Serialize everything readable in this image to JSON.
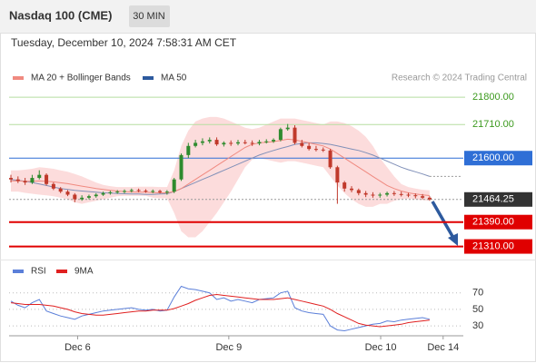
{
  "header": {
    "title": "Nasdaq 100 (CME)",
    "interval": "30 MIN",
    "timestamp": "Tuesday, December 10, 2024 7:58:31 AM CET",
    "watermark": "Research © 2024 Trading Central"
  },
  "chart_data": [
    {
      "type": "candlestick",
      "x": [
        0,
        1,
        2,
        3,
        4,
        5,
        6,
        7,
        8,
        9,
        10,
        11,
        12,
        13,
        14,
        15,
        16,
        17,
        18,
        19,
        20,
        21,
        22,
        23,
        24,
        25,
        26,
        27,
        28,
        29,
        30,
        31,
        32,
        33,
        34,
        35,
        36,
        37,
        38,
        39,
        40,
        41,
        42,
        43,
        44,
        45,
        46,
        47,
        48,
        49,
        50,
        51,
        52,
        53,
        54,
        55,
        56,
        57,
        58,
        59
      ],
      "xlim": [
        0,
        64
      ],
      "ylim": [
        21270,
        21836
      ],
      "up_color": "#2e8b2e",
      "down_color": "#c0392b",
      "open": [
        21535,
        21530,
        21525,
        21520,
        21535,
        21545,
        21515,
        21500,
        21490,
        21480,
        21465,
        21470,
        21475,
        21480,
        21485,
        21488,
        21490,
        21492,
        21495,
        21493,
        21490,
        21492,
        21488,
        21490,
        21530,
        21610,
        21640,
        21650,
        21655,
        21660,
        21645,
        21650,
        21648,
        21652,
        21650,
        21648,
        21653,
        21655,
        21660,
        21695,
        21700,
        21650,
        21640,
        21630,
        21628,
        21625,
        21570,
        21520,
        21500,
        21495,
        21485,
        21480,
        21478,
        21480,
        21485,
        21482,
        21480,
        21478,
        21475,
        21470
      ],
      "high": [
        21545,
        21540,
        21535,
        21545,
        21560,
        21550,
        21520,
        21505,
        21495,
        21485,
        21478,
        21480,
        21485,
        21490,
        21493,
        21495,
        21497,
        21500,
        21500,
        21498,
        21497,
        21496,
        21495,
        21535,
        21615,
        21650,
        21660,
        21665,
        21668,
        21668,
        21655,
        21658,
        21660,
        21660,
        21658,
        21660,
        21662,
        21665,
        21700,
        21712,
        21708,
        21660,
        21650,
        21640,
        21635,
        21630,
        21575,
        21525,
        21508,
        21500,
        21492,
        21488,
        21486,
        21490,
        21492,
        21490,
        21486,
        21484,
        21482,
        21475
      ],
      "low": [
        21520,
        21518,
        21512,
        21515,
        21530,
        21510,
        21495,
        21485,
        21475,
        21455,
        21460,
        21465,
        21470,
        21476,
        21480,
        21483,
        21485,
        21487,
        21488,
        21486,
        21485,
        21484,
        21480,
        21485,
        21525,
        21600,
        21635,
        21642,
        21648,
        21640,
        21638,
        21640,
        21642,
        21645,
        21640,
        21642,
        21648,
        21650,
        21655,
        21690,
        21645,
        21635,
        21625,
        21622,
        21620,
        21565,
        21450,
        21490,
        21488,
        21478,
        21472,
        21470,
        21470,
        21474,
        21476,
        21474,
        21472,
        21468,
        21465,
        21460
      ],
      "close": [
        21530,
        21525,
        21520,
        21535,
        21545,
        21515,
        21500,
        21490,
        21480,
        21465,
        21470,
        21475,
        21480,
        21485,
        21488,
        21490,
        21492,
        21495,
        21493,
        21490,
        21492,
        21488,
        21490,
        21530,
        21610,
        21640,
        21650,
        21655,
        21660,
        21645,
        21650,
        21648,
        21652,
        21650,
        21648,
        21653,
        21655,
        21660,
        21695,
        21700,
        21650,
        21640,
        21630,
        21628,
        21625,
        21570,
        21520,
        21500,
        21495,
        21485,
        21480,
        21478,
        21480,
        21485,
        21482,
        21480,
        21478,
        21475,
        21470,
        21464.25
      ],
      "series": [
        {
          "name": "MA 20 + Bollinger Bands",
          "color": "#f08a80",
          "band_color": "#fbd6d6",
          "values": [
            21525,
            21525,
            21524,
            21524,
            21525,
            21524,
            21522,
            21519,
            21516,
            21512,
            21508,
            21504,
            21500,
            21497,
            21494,
            21492,
            21490,
            21489,
            21488,
            21488,
            21487,
            21486,
            21486,
            21490,
            21500,
            21515,
            21530,
            21545,
            21560,
            21575,
            21590,
            21605,
            21620,
            21635,
            21645,
            21650,
            21652,
            21654,
            21658,
            21662,
            21660,
            21655,
            21650,
            21645,
            21640,
            21630,
            21615,
            21600,
            21585,
            21570,
            21555,
            21540,
            21525,
            21510,
            21500,
            21492,
            21486,
            21482,
            21479,
            21477
          ],
          "upper": [
            21560,
            21560,
            21562,
            21565,
            21570,
            21568,
            21565,
            21560,
            21555,
            21548,
            21540,
            21530,
            21520,
            21512,
            21508,
            21505,
            21505,
            21505,
            21506,
            21506,
            21506,
            21505,
            21505,
            21560,
            21640,
            21690,
            21720,
            21730,
            21735,
            21735,
            21730,
            21720,
            21710,
            21700,
            21695,
            21700,
            21710,
            21720,
            21730,
            21730,
            21730,
            21725,
            21720,
            21715,
            21710,
            21720,
            21720,
            21715,
            21705,
            21690,
            21670,
            21640,
            21600,
            21570,
            21540,
            21515,
            21505,
            21500,
            21496,
            21494
          ],
          "lower": [
            21490,
            21490,
            21486,
            21483,
            21480,
            21478,
            21475,
            21470,
            21465,
            21455,
            21450,
            21455,
            21460,
            21465,
            21470,
            21475,
            21476,
            21476,
            21476,
            21476,
            21470,
            21468,
            21468,
            21420,
            21360,
            21340,
            21340,
            21360,
            21390,
            21420,
            21455,
            21490,
            21530,
            21570,
            21595,
            21600,
            21595,
            21590,
            21585,
            21590,
            21590,
            21585,
            21580,
            21575,
            21570,
            21540,
            21510,
            21485,
            21465,
            21450,
            21440,
            21440,
            21450,
            21450,
            21460,
            21465,
            21467,
            21464,
            21462,
            21460
          ]
        },
        {
          "name": "MA 50",
          "color": "#2d5a9e",
          "line_color": "#8090b8",
          "values": [
            21530,
            21527,
            21524,
            21520,
            21515,
            21510,
            21505,
            21500,
            21497,
            21494,
            21492,
            21490,
            21488,
            21486,
            21485,
            21484,
            21483,
            21482,
            21482,
            21481,
            21481,
            21482,
            21483,
            21490,
            21500,
            21510,
            21520,
            21530,
            21540,
            21550,
            21560,
            21570,
            21580,
            21590,
            21600,
            21610,
            21618,
            21625,
            21632,
            21638,
            21645,
            21648,
            21650,
            21650,
            21648,
            21645,
            21640,
            21635,
            21630,
            21625,
            21618,
            21610,
            21600,
            21590,
            21580,
            21570,
            21562,
            21555,
            21548,
            21540
          ]
        }
      ],
      "levels": [
        {
          "value": 21800,
          "label": "21800.00",
          "color": "#3c9a1e",
          "line_color": "#b5dea0",
          "boxed": false,
          "dashed": false
        },
        {
          "value": 21710,
          "label": "21710.00",
          "color": "#3c9a1e",
          "line_color": "#b5dea0",
          "boxed": false,
          "dashed": false
        },
        {
          "value": 21600,
          "label": "21600.00",
          "color": "#2f6fd6",
          "line_color": "#2f6fd6",
          "boxed": true,
          "dashed": false
        },
        {
          "value": 21464.25,
          "label": "21464.25",
          "color": "#333333",
          "line_color": "#999999",
          "boxed": true,
          "dashed": true
        },
        {
          "value": 21390,
          "label": "21390.00",
          "color": "#e00000",
          "line_color": "#e00000",
          "boxed": true,
          "dashed": false
        },
        {
          "value": 21310,
          "label": "21310.00",
          "color": "#e00000",
          "line_color": "#e00000",
          "boxed": true,
          "dashed": false
        }
      ]
    },
    {
      "type": "line",
      "x": [
        0,
        1,
        2,
        3,
        4,
        5,
        6,
        7,
        8,
        9,
        10,
        11,
        12,
        13,
        14,
        15,
        16,
        17,
        18,
        19,
        20,
        21,
        22,
        23,
        24,
        25,
        26,
        27,
        28,
        29,
        30,
        31,
        32,
        33,
        34,
        35,
        36,
        37,
        38,
        39,
        40,
        41,
        42,
        43,
        44,
        45,
        46,
        47,
        48,
        49,
        50,
        51,
        52,
        53,
        54,
        55,
        56,
        57,
        58,
        59
      ],
      "xlim": [
        0,
        64
      ],
      "ylim": [
        18,
        84
      ],
      "yticks": [
        30,
        50,
        70
      ],
      "grid": true,
      "xticks": [
        {
          "value": 9.4,
          "label": "Dec 6"
        },
        {
          "value": 30.7,
          "label": "Dec 9"
        },
        {
          "value": 52.1,
          "label": "Dec 10"
        },
        {
          "value": 60.9,
          "label": "Dec 14"
        }
      ],
      "series": [
        {
          "name": "RSI",
          "color": "#5b7fd9",
          "values": [
            60,
            55,
            52,
            58,
            62,
            48,
            45,
            42,
            40,
            38,
            42,
            44,
            46,
            48,
            49,
            50,
            51,
            52,
            50,
            49,
            50,
            48,
            49,
            65,
            78,
            75,
            74,
            72,
            70,
            62,
            64,
            60,
            62,
            60,
            58,
            62,
            63,
            64,
            70,
            72,
            52,
            48,
            46,
            45,
            44,
            30,
            25,
            24,
            26,
            28,
            30,
            32,
            33,
            36,
            35,
            37,
            38,
            39,
            40,
            38
          ]
        },
        {
          "name": "9MA",
          "color": "#e02020",
          "values": [
            58,
            57,
            56,
            56,
            56,
            55,
            54,
            52,
            50,
            47,
            45,
            44,
            43,
            43,
            44,
            45,
            46,
            47,
            48,
            48,
            49,
            49,
            49,
            51,
            54,
            57,
            61,
            64,
            67,
            68,
            67,
            66,
            65,
            64,
            63,
            62,
            62,
            62,
            63,
            64,
            62,
            60,
            58,
            56,
            54,
            50,
            45,
            41,
            37,
            33,
            31,
            30,
            29,
            30,
            31,
            32,
            34,
            35,
            36,
            37
          ]
        }
      ]
    }
  ]
}
